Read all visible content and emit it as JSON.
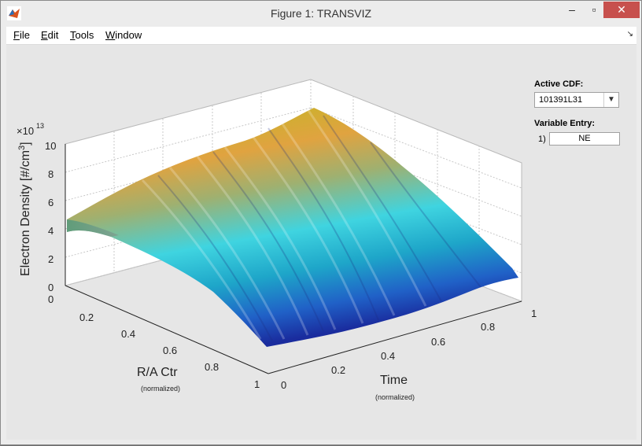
{
  "window": {
    "title": "Figure 1: TRANSVIZ"
  },
  "menu": [
    {
      "label": "File",
      "key": "F",
      "rest": "ile"
    },
    {
      "label": "Edit",
      "key": "E",
      "rest": "dit"
    },
    {
      "label": "Tools",
      "key": "T",
      "rest": "ools"
    },
    {
      "label": "Window",
      "key": "W",
      "rest": "indow"
    }
  ],
  "panel": {
    "active_cdf_label": "Active CDF:",
    "active_cdf_value": "101391L31",
    "variable_entry_label": "Variable Entry:",
    "entry_index": "1)",
    "entry_value": "NE"
  },
  "plot": {
    "zlabel": "Electron Density [#/cm",
    "zlabel_sup": "3",
    "zlabel_close": "]",
    "z_exponent_base": "×10",
    "z_exponent": "13",
    "z_ticks": [
      "0",
      "2",
      "4",
      "6",
      "8",
      "10"
    ],
    "x_label": "R/A Ctr",
    "x_sublabel": "(normalized)",
    "x_ticks": [
      "0",
      "0.2",
      "0.4",
      "0.6",
      "0.8",
      "1"
    ],
    "y_label": "Time",
    "y_sublabel": "(normalized)",
    "y_ticks": [
      "0",
      "0.2",
      "0.4",
      "0.6",
      "0.8",
      "1"
    ],
    "colors": {
      "high": "#d4b41a",
      "mid": "#1fb9c9",
      "low": "#1d3fbe"
    }
  }
}
